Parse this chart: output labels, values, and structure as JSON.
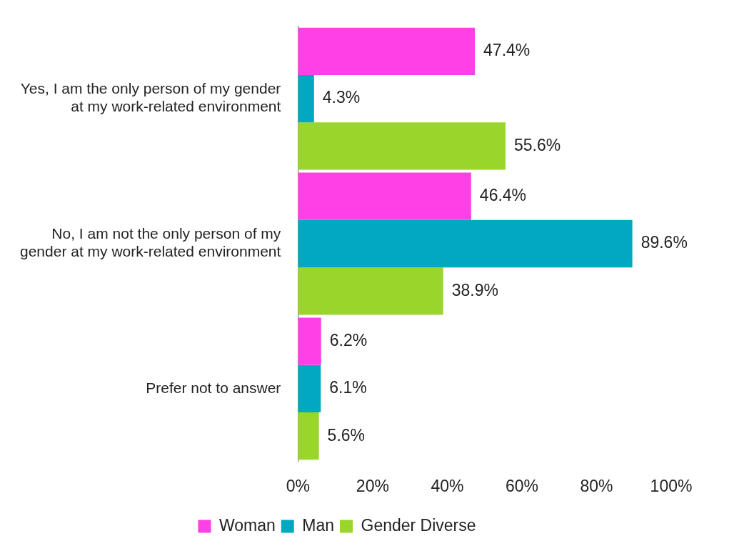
{
  "chart_data": {
    "type": "bar",
    "orientation": "horizontal",
    "categories": [
      "Yes, I am the only person of my gender at my work-related environment",
      "No, I am not the only person of my gender at my work-related environment",
      "Prefer not to answer"
    ],
    "series": [
      {
        "name": "Woman",
        "color": "#ff40e6",
        "values": [
          47.4,
          46.4,
          6.2
        ],
        "value_labels": [
          "47.4%",
          "46.4%",
          "6.2%"
        ]
      },
      {
        "name": "Man",
        "color": "#00a9bf",
        "values": [
          4.3,
          89.6,
          6.1
        ],
        "value_labels": [
          "4.3%",
          "89.6%",
          "6.1%"
        ]
      },
      {
        "name": "Gender Diverse",
        "color": "#99d52a",
        "values": [
          55.6,
          38.9,
          5.6
        ],
        "value_labels": [
          "55.6%",
          "38.9%",
          "5.6%"
        ]
      }
    ],
    "xlim": [
      0,
      100
    ],
    "xticks": [
      {
        "value": 0,
        "label": "0%"
      },
      {
        "value": 20,
        "label": "20%"
      },
      {
        "value": 40,
        "label": "40%"
      },
      {
        "value": 60,
        "label": "60%"
      },
      {
        "value": 80,
        "label": "80%"
      },
      {
        "value": 100,
        "label": "100%"
      }
    ],
    "grid": false,
    "legend": "bottom"
  }
}
